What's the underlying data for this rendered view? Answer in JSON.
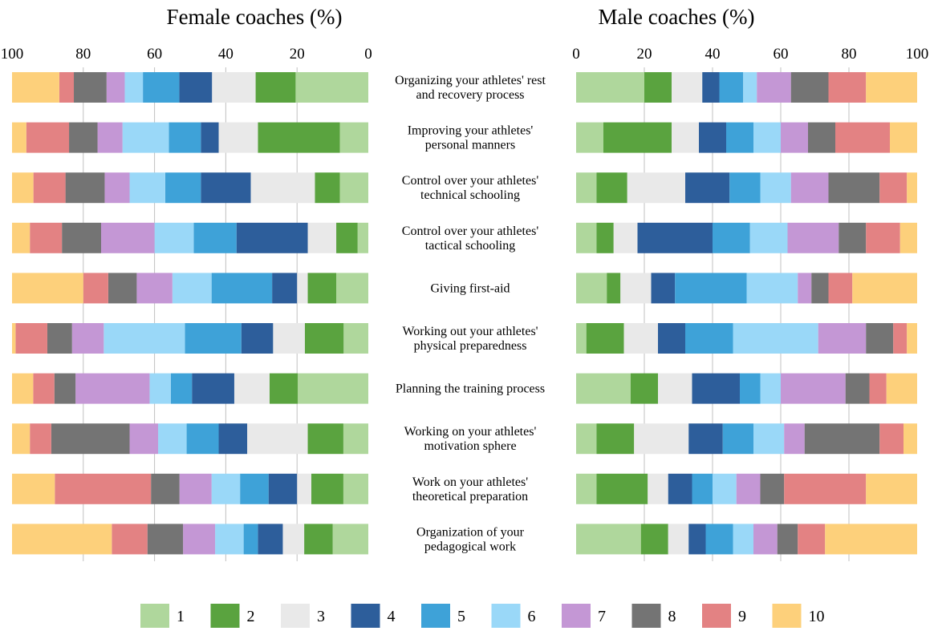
{
  "chart_data": {
    "type": "bar",
    "subtype": "stacked-horizontal-100",
    "categories": [
      "Organizing your athletes' rest and recovery process",
      "Improving your athletes' personal manners",
      "Control over your athletes' technical schooling",
      "Control over your athletes' tactical schooling",
      "Giving first-aid",
      "Working out your athletes' physical preparedness",
      "Planning the training process",
      "Working on your athletes' motivation sphere",
      "Work on your athletes' theoretical preparation",
      "Organization of your pedagogical work"
    ],
    "category_lines": [
      [
        "Organizing your athletes' rest",
        "and recovery process"
      ],
      [
        "Improving your athletes'",
        "personal manners"
      ],
      [
        "Control over your athletes'",
        "technical schooling"
      ],
      [
        "Control over your athletes'",
        "tactical schooling"
      ],
      [
        "Giving first-aid"
      ],
      [
        "Working out your athletes'",
        "physical preparedness"
      ],
      [
        "Planning the training process"
      ],
      [
        "Working on your athletes'",
        "motivation sphere"
      ],
      [
        "Work on your athletes'",
        "theoretical preparation"
      ],
      [
        "Organization of your",
        "pedagogical work"
      ]
    ],
    "legend": [
      "1",
      "2",
      "3",
      "4",
      "5",
      "6",
      "7",
      "8",
      "9",
      "10"
    ],
    "colors": [
      "#afd79c",
      "#5aa33f",
      "#e9e9e9",
      "#2d5e9b",
      "#3ea2d8",
      "#9ad8f8",
      "#c497d5",
      "#747474",
      "#e38283",
      "#fdd07b"
    ],
    "axis_ticks": [
      0,
      20,
      40,
      60,
      80,
      100
    ],
    "charts": [
      {
        "title": "Female coaches (%)",
        "direction": "reversed",
        "xlim": [
          0,
          100
        ],
        "values": [
          [
            20,
            11,
            12,
            9,
            10,
            5,
            5,
            9,
            4,
            13
          ],
          [
            8,
            23,
            11,
            5,
            9,
            13,
            7,
            8,
            12,
            4
          ],
          [
            8,
            7,
            18,
            14,
            10,
            10,
            7,
            11,
            9,
            6
          ],
          [
            3,
            6,
            8,
            20,
            12,
            11,
            15,
            11,
            9,
            5
          ],
          [
            9,
            8,
            3,
            7,
            17,
            11,
            10,
            8,
            7,
            20
          ],
          [
            7,
            11,
            9,
            9,
            16,
            23,
            9,
            7,
            9,
            1
          ],
          [
            20,
            8,
            10,
            12,
            6,
            6,
            21,
            6,
            6,
            6
          ],
          [
            7,
            10,
            17,
            8,
            9,
            8,
            8,
            22,
            6,
            5
          ],
          [
            7,
            9,
            4,
            8,
            8,
            8,
            9,
            8,
            27,
            12
          ],
          [
            10,
            8,
            6,
            7,
            4,
            8,
            9,
            10,
            10,
            28
          ]
        ]
      },
      {
        "title": "Male coaches (%)",
        "direction": "normal",
        "xlim": [
          0,
          100
        ],
        "values": [
          [
            20,
            8,
            9,
            5,
            7,
            4,
            10,
            11,
            11,
            15
          ],
          [
            8,
            20,
            8,
            8,
            8,
            8,
            8,
            8,
            16,
            8
          ],
          [
            6,
            9,
            17,
            13,
            9,
            9,
            11,
            15,
            8,
            3
          ],
          [
            6,
            5,
            7,
            22,
            11,
            11,
            15,
            8,
            10,
            5
          ],
          [
            9,
            4,
            9,
            7,
            21,
            15,
            4,
            5,
            7,
            19
          ],
          [
            3,
            11,
            10,
            8,
            14,
            25,
            14,
            8,
            4,
            3
          ],
          [
            16,
            8,
            10,
            14,
            6,
            6,
            19,
            7,
            5,
            9
          ],
          [
            6,
            11,
            16,
            10,
            9,
            9,
            6,
            22,
            7,
            4
          ],
          [
            6,
            15,
            6,
            7,
            6,
            7,
            7,
            7,
            24,
            15
          ],
          [
            19,
            8,
            6,
            5,
            8,
            6,
            7,
            6,
            8,
            27
          ]
        ]
      }
    ]
  }
}
